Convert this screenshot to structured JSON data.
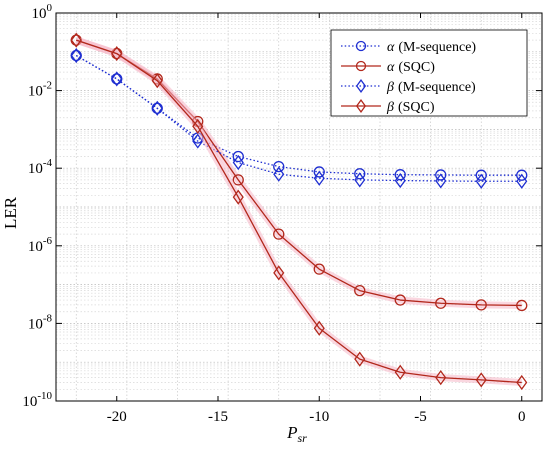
{
  "chart_data": {
    "type": "line",
    "title": "",
    "xlabel": "P",
    "xlabel_sub": "sr",
    "ylabel": "LER",
    "xlim": [
      -23,
      1
    ],
    "ylim_log10": [
      -10,
      0
    ],
    "yscale": "log",
    "grid": true,
    "legend_position": "top-right",
    "x_ticks": [
      "-20",
      "-15",
      "-10",
      "-5",
      "0"
    ],
    "x_tick_values": [
      -20,
      -15,
      -10,
      -5,
      0
    ],
    "y_tick_exponents": [
      "0",
      "-2",
      "-4",
      "-6",
      "-8",
      "-10"
    ],
    "y_tick_values": [
      0,
      -2,
      -4,
      -6,
      -8,
      -10
    ],
    "y_tick_base": "10",
    "x": [
      -22,
      -20,
      -18,
      -16,
      -14,
      -12,
      -10,
      -8,
      -6,
      -4,
      -2,
      0
    ],
    "series": [
      {
        "name": "(M-sequence)",
        "symbol": "α",
        "color": "#1f2fd1",
        "line": "dotted",
        "marker": "circle",
        "values": [
          0.08,
          0.02,
          0.0035,
          0.0006,
          0.0002,
          0.00011,
          8e-05,
          7.2e-05,
          6.8e-05,
          6.7e-05,
          6.6e-05,
          6.6e-05
        ]
      },
      {
        "name": "(SQC)",
        "symbol": "α",
        "color": "#b2281c",
        "line": "solid",
        "marker": "circle",
        "values": [
          0.2,
          0.09,
          0.02,
          0.0016,
          5e-05,
          2e-06,
          2.5e-07,
          7e-08,
          4e-08,
          3.3e-08,
          3e-08,
          2.9e-08
        ]
      },
      {
        "name": "(M-sequence)",
        "symbol": "β",
        "color": "#1f2fd1",
        "line": "dotted",
        "marker": "diamond",
        "values": [
          0.08,
          0.02,
          0.0035,
          0.0005,
          0.00014,
          7e-05,
          5.5e-05,
          5e-05,
          4.8e-05,
          4.7e-05,
          4.6e-05,
          4.6e-05
        ]
      },
      {
        "name": "(SQC)",
        "symbol": "β",
        "color": "#b2281c",
        "line": "solid",
        "marker": "diamond",
        "values": [
          0.2,
          0.09,
          0.018,
          0.0012,
          1.8e-05,
          2e-07,
          7.5e-09,
          1.2e-09,
          5.5e-10,
          4e-10,
          3.5e-10,
          3e-10
        ]
      }
    ]
  }
}
